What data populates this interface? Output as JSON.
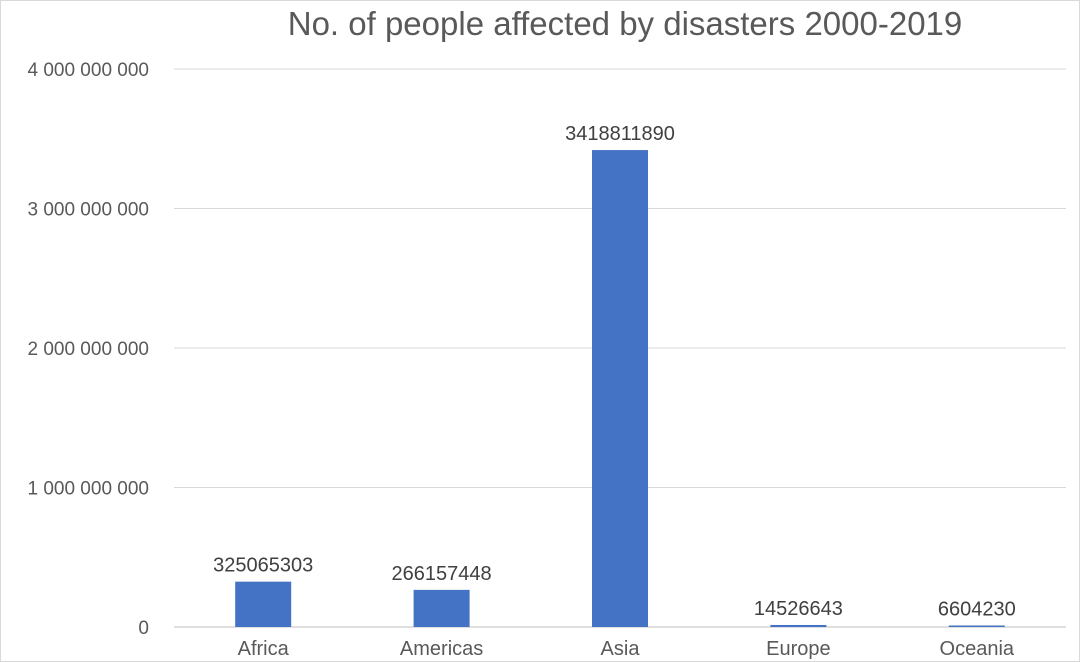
{
  "chart_data": {
    "type": "bar",
    "title": "No. of people affected by disasters 2000-2019",
    "categories": [
      "Africa",
      "Americas",
      "Asia",
      "Europe",
      "Oceania"
    ],
    "values": [
      325065303,
      266157448,
      3418811890,
      14526643,
      6604230
    ],
    "data_labels": [
      "325065303",
      "266157448",
      "3418811890",
      "14526643",
      "6604230"
    ],
    "ylim": [
      0,
      4000000000
    ],
    "y_ticks": [
      0,
      1000000000,
      2000000000,
      3000000000,
      4000000000
    ],
    "y_tick_labels": [
      "0",
      "1 000 000 000",
      "2 000 000 000",
      "3 000 000 000",
      "4 000 000 000"
    ],
    "xlabel": "",
    "ylabel": "",
    "grid": true,
    "legend": "none",
    "bar_color": "#4472c4"
  }
}
